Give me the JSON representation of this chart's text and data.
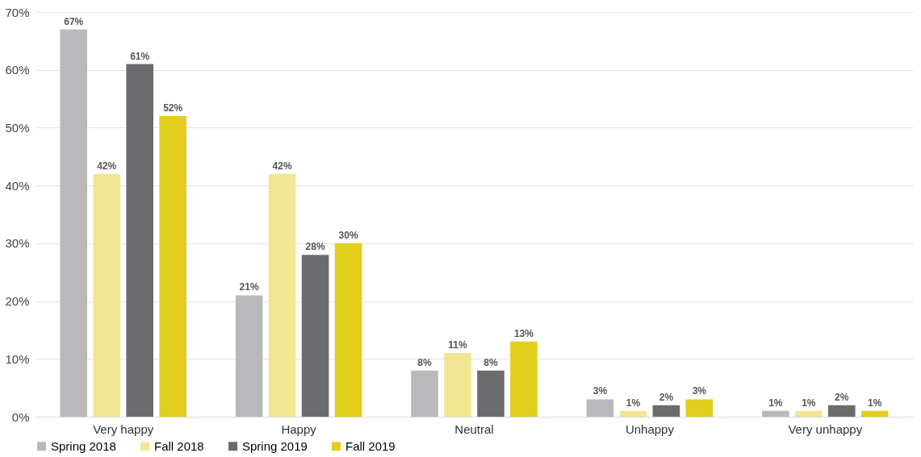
{
  "chart_data": {
    "type": "bar",
    "categories": [
      "Very happy",
      "Happy",
      "Neutral",
      "Unhappy",
      "Very unhappy"
    ],
    "series": [
      {
        "name": "Spring 2018",
        "color": "#b9b9bc",
        "values": [
          67,
          21,
          8,
          3,
          1
        ],
        "value_labels": [
          "67%",
          "21%",
          "8%",
          "3%",
          "1%"
        ]
      },
      {
        "name": "Fall 2018",
        "color": "#f2e693",
        "values": [
          42,
          42,
          11,
          1,
          1
        ],
        "value_labels": [
          "42%",
          "42%",
          "11%",
          "1%",
          "1%"
        ]
      },
      {
        "name": "Spring 2019",
        "color": "#6b6b6e",
        "values": [
          61,
          28,
          8,
          2,
          2
        ],
        "value_labels": [
          "61%",
          "28%",
          "8%",
          "2%",
          "2%"
        ]
      },
      {
        "name": "Fall 2019",
        "color": "#e3cd1d",
        "values": [
          52,
          30,
          13,
          3,
          1
        ],
        "value_labels": [
          "52%",
          "30%",
          "13%",
          "3%",
          "1%"
        ]
      }
    ],
    "ylim": [
      0,
      70
    ],
    "yticks": [
      {
        "value": 0,
        "label": "0%"
      },
      {
        "value": 10,
        "label": "10%"
      },
      {
        "value": 20,
        "label": "20%"
      },
      {
        "value": 30,
        "label": "30%"
      },
      {
        "value": 40,
        "label": "40%"
      },
      {
        "value": 50,
        "label": "50%"
      },
      {
        "value": 60,
        "label": "60%"
      },
      {
        "value": 70,
        "label": "70%"
      }
    ],
    "grid": "y",
    "legend": "bottom"
  }
}
